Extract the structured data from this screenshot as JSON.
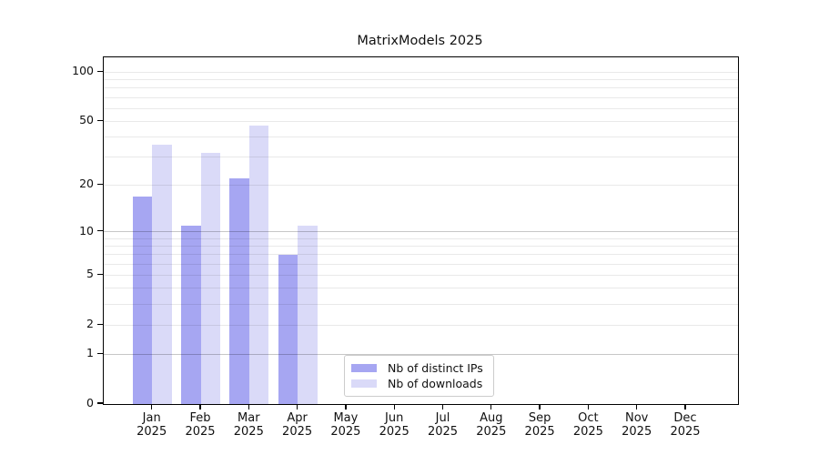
{
  "page": {
    "background": "#ffffff"
  },
  "chart_data": {
    "type": "bar",
    "title": "MatrixModels 2025",
    "categories": [
      "Jan",
      "Feb",
      "Mar",
      "Apr",
      "May",
      "Jun",
      "Jul",
      "Aug",
      "Sep",
      "Oct",
      "Nov",
      "Dec"
    ],
    "category_sublabel": "2025",
    "series": [
      {
        "name": "Nb of distinct IPs",
        "color": "#a6a6f2",
        "values": [
          17,
          11,
          22,
          7,
          0,
          0,
          0,
          0,
          0,
          0,
          0,
          0
        ]
      },
      {
        "name": "Nb of downloads",
        "color": "#dadaf8",
        "values": [
          36,
          32,
          47,
          11,
          0,
          0,
          0,
          0,
          0,
          0,
          0,
          0
        ]
      }
    ],
    "xlabel": "",
    "ylabel": "",
    "ylim": [
      0,
      100
    ],
    "yscale": "log1p",
    "yticks": [
      0,
      1,
      2,
      5,
      10,
      20,
      50,
      100
    ],
    "major_gridlines": [
      1,
      10
    ],
    "minor_gridlines": [
      2,
      3,
      4,
      5,
      6,
      7,
      8,
      9,
      20,
      30,
      40,
      50,
      60,
      70,
      80,
      90,
      100
    ],
    "grid": true,
    "grid_minor_color": "rgba(0,0,0,0.085)",
    "grid_major_color": "rgba(0,0,0,0.22)",
    "axis_color": "#000000",
    "legend_position": "inside lower center"
  }
}
